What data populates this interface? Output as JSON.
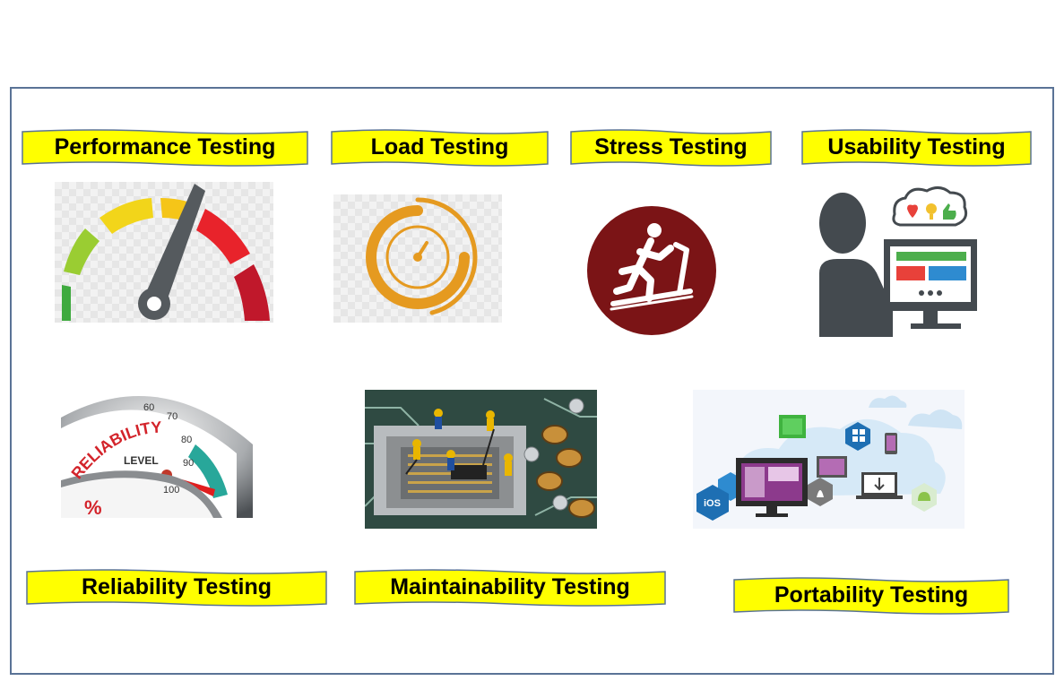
{
  "colors": {
    "banner_fill": "#ffff00",
    "banner_stroke": "#5a7396",
    "frame_border": "#5a7396"
  },
  "testing_types": [
    {
      "label": "Performance Testing",
      "icon": "speedometer-icon"
    },
    {
      "label": "Load Testing",
      "icon": "stopwatch-icon"
    },
    {
      "label": "Stress Testing",
      "icon": "treadmill-runner-icon"
    },
    {
      "label": "Usability Testing",
      "icon": "user-at-computer-icon"
    },
    {
      "label": "Reliability Testing",
      "icon": "reliability-gauge-icon"
    },
    {
      "label": "Maintainability Testing",
      "icon": "circuit-board-workers-icon"
    },
    {
      "label": "Portability Testing",
      "icon": "multi-platform-devices-icon"
    }
  ],
  "reliability_gauge": {
    "ticks": [
      "60",
      "70",
      "80",
      "90",
      "100"
    ],
    "arc_text": "RELIABILITY",
    "sub_text": "LEVEL",
    "percent_sign": "%"
  },
  "portability": {
    "ios_label": "iOS"
  }
}
